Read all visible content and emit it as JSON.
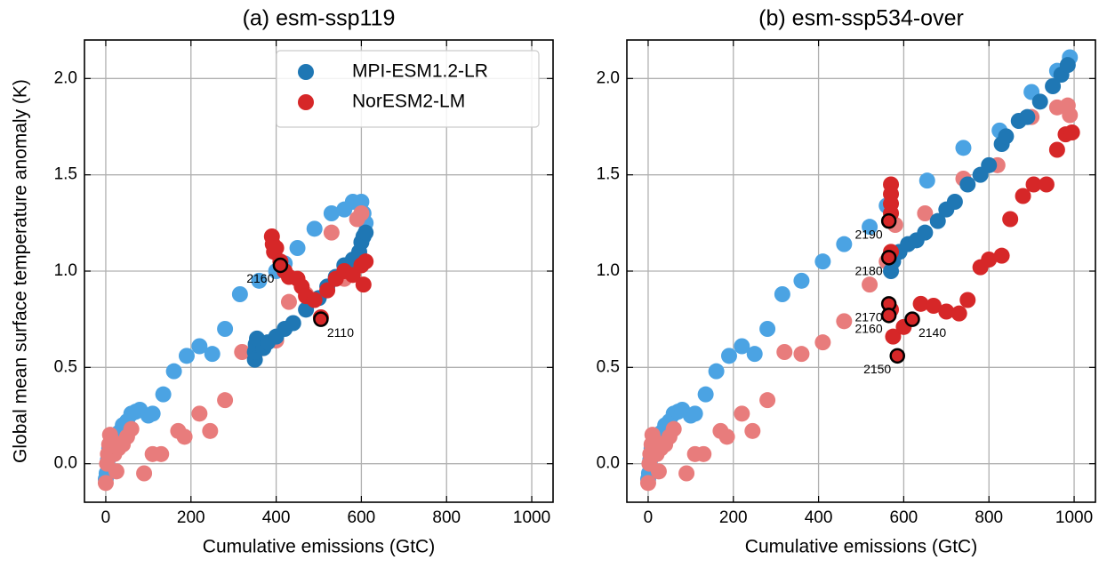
{
  "chart_data": [
    {
      "type": "scatter",
      "title": "(a) esm-ssp119",
      "xlabel": "Cumulative emissions (GtC)",
      "ylabel": "Global mean surface temperature anomaly (K)",
      "xlim": [
        -50,
        1050
      ],
      "ylim": [
        -0.2,
        2.2
      ],
      "xticks": [
        0,
        200,
        400,
        600,
        800,
        1000
      ],
      "yticks": [
        {
          "value": 0,
          "label": "0.0"
        },
        {
          "value": 0.5,
          "label": "0.5"
        },
        {
          "value": 1,
          "label": "1.0"
        },
        {
          "value": 1.5,
          "label": "1.5"
        },
        {
          "value": 2,
          "label": "2.0"
        }
      ],
      "grid": true,
      "legend": "upper right",
      "series": [
        {
          "color": "#4ba3e3",
          "x": [
            0,
            2,
            5,
            8,
            12,
            20,
            30,
            40,
            50,
            60,
            70,
            80,
            100,
            110,
            135,
            160,
            190,
            220,
            250,
            280,
            315,
            360,
            400,
            420,
            450,
            490,
            530,
            560,
            580,
            600,
            605,
            610
          ],
          "values": [
            -0.08,
            -0.05,
            0.02,
            0.08,
            0.1,
            0.13,
            0.16,
            0.2,
            0.22,
            0.26,
            0.27,
            0.28,
            0.25,
            0.26,
            0.36,
            0.48,
            0.56,
            0.61,
            0.57,
            0.7,
            0.88,
            0.95,
            1.0,
            1.04,
            1.12,
            1.22,
            1.3,
            1.32,
            1.36,
            1.36,
            1.3,
            1.25
          ]
        },
        {
          "color": "#e87c7c",
          "x": [
            0,
            3,
            5,
            8,
            10,
            15,
            20,
            25,
            30,
            40,
            50,
            60,
            90,
            110,
            130,
            170,
            185,
            220,
            245,
            280,
            320,
            350,
            400,
            430,
            470,
            530,
            560,
            590,
            600
          ],
          "values": [
            -0.1,
            0.0,
            0.05,
            0.1,
            0.15,
            0.12,
            0.05,
            -0.04,
            0.08,
            0.1,
            0.14,
            0.18,
            -0.05,
            0.05,
            0.05,
            0.17,
            0.14,
            0.26,
            0.17,
            0.33,
            0.58,
            0.57,
            0.64,
            0.84,
            0.88,
            1.2,
            0.96,
            1.27,
            1.3
          ]
        },
        {
          "name": "MPI-ESM1.2-LR",
          "color": "#1f77b4",
          "x": [
            350,
            350,
            352,
            355,
            370,
            380,
            400,
            420,
            440,
            470,
            500,
            520,
            540,
            560,
            580,
            595,
            600,
            605,
            610
          ],
          "values": [
            0.54,
            0.58,
            0.62,
            0.65,
            0.6,
            0.63,
            0.66,
            0.7,
            0.73,
            0.8,
            0.86,
            0.92,
            0.97,
            1.03,
            1.06,
            1.1,
            1.15,
            1.18,
            1.2
          ]
        },
        {
          "name": "NorESM2-LM",
          "color": "#d62728",
          "x": [
            390,
            392,
            395,
            400,
            410,
            420,
            430,
            450,
            460,
            470,
            490,
            505,
            520,
            540,
            560,
            580,
            600,
            605,
            610
          ],
          "values": [
            1.18,
            1.14,
            1.1,
            1.12,
            1.05,
            1.0,
            0.97,
            0.96,
            0.92,
            0.87,
            0.85,
            0.76,
            0.9,
            0.96,
            1.0,
            0.98,
            1.03,
            0.93,
            1.05
          ]
        }
      ],
      "annotations": [
        {
          "x": 410,
          "y": 1.03,
          "label": "2160",
          "color": "#d62728"
        },
        {
          "x": 505,
          "y": 0.75,
          "label": "2110",
          "color": "#d62728"
        }
      ]
    },
    {
      "type": "scatter",
      "title": "(b) esm-ssp534-over",
      "xlabel": "Cumulative emissions (GtC)",
      "xlim": [
        -50,
        1050
      ],
      "ylim": [
        -0.2,
        2.2
      ],
      "xticks": [
        0,
        200,
        400,
        600,
        800,
        1000
      ],
      "yticks": [
        {
          "value": 0,
          "label": "0.0"
        },
        {
          "value": 0.5,
          "label": "0.5"
        },
        {
          "value": 1,
          "label": "1.0"
        },
        {
          "value": 1.5,
          "label": "1.5"
        },
        {
          "value": 2,
          "label": "2.0"
        }
      ],
      "grid": true,
      "series": [
        {
          "color": "#4ba3e3",
          "x": [
            0,
            2,
            5,
            8,
            12,
            20,
            30,
            40,
            50,
            60,
            70,
            80,
            100,
            110,
            135,
            160,
            190,
            220,
            250,
            280,
            315,
            360,
            410,
            460,
            520,
            560,
            655,
            740,
            825,
            900,
            960,
            990
          ],
          "values": [
            -0.08,
            -0.05,
            0.02,
            0.08,
            0.1,
            0.13,
            0.16,
            0.2,
            0.22,
            0.26,
            0.27,
            0.28,
            0.25,
            0.26,
            0.36,
            0.48,
            0.56,
            0.61,
            0.57,
            0.7,
            0.88,
            0.95,
            1.05,
            1.14,
            1.23,
            1.34,
            1.47,
            1.64,
            1.73,
            1.93,
            2.04,
            2.11
          ]
        },
        {
          "color": "#e87c7c",
          "x": [
            0,
            3,
            5,
            8,
            10,
            15,
            20,
            25,
            30,
            40,
            50,
            60,
            90,
            110,
            130,
            170,
            185,
            220,
            245,
            280,
            320,
            360,
            410,
            460,
            520,
            560,
            580,
            650,
            740,
            820,
            900,
            960,
            985,
            990
          ],
          "values": [
            -0.1,
            0.0,
            0.05,
            0.1,
            0.15,
            0.12,
            0.05,
            -0.04,
            0.08,
            0.1,
            0.14,
            0.18,
            -0.05,
            0.05,
            0.05,
            0.17,
            0.14,
            0.26,
            0.17,
            0.33,
            0.58,
            0.57,
            0.63,
            0.74,
            0.93,
            1.05,
            1.24,
            1.3,
            1.48,
            1.55,
            1.8,
            1.85,
            1.86,
            1.81
          ]
        },
        {
          "color": "#1f77b4",
          "x": [
            570,
            575,
            590,
            610,
            630,
            650,
            680,
            700,
            720,
            750,
            780,
            800,
            830,
            840,
            870,
            890,
            920,
            950,
            970,
            985
          ],
          "values": [
            1.0,
            1.05,
            1.1,
            1.14,
            1.16,
            1.2,
            1.26,
            1.32,
            1.36,
            1.45,
            1.5,
            1.55,
            1.66,
            1.7,
            1.78,
            1.8,
            1.88,
            1.96,
            2.02,
            2.07
          ]
        },
        {
          "color": "#d62728",
          "x": [
            570,
            570,
            570,
            570,
            570,
            570,
            575,
            600,
            640,
            670,
            700,
            730,
            750,
            780,
            800,
            830,
            850,
            880,
            905,
            935,
            960,
            980,
            995
          ],
          "values": [
            1.45,
            1.4,
            1.35,
            1.3,
            1.1,
            0.8,
            0.66,
            0.71,
            0.83,
            0.82,
            0.79,
            0.78,
            0.85,
            1.02,
            1.06,
            1.08,
            1.27,
            1.39,
            1.45,
            1.45,
            1.63,
            1.71,
            1.72
          ]
        }
      ],
      "annotations": [
        {
          "x": 565,
          "y": 1.26,
          "label": "2190",
          "color": "#d62728"
        },
        {
          "x": 565,
          "y": 1.07,
          "label": "2180",
          "color": "#d62728"
        },
        {
          "x": 565,
          "y": 0.83,
          "label": "2170",
          "color": "#d62728"
        },
        {
          "x": 565,
          "y": 0.77,
          "label": "2160",
          "color": "#d62728"
        },
        {
          "x": 620,
          "y": 0.75,
          "label": "2140",
          "color": "#d62728"
        },
        {
          "x": 585,
          "y": 0.56,
          "label": "2150",
          "color": "#d62728"
        }
      ]
    }
  ]
}
